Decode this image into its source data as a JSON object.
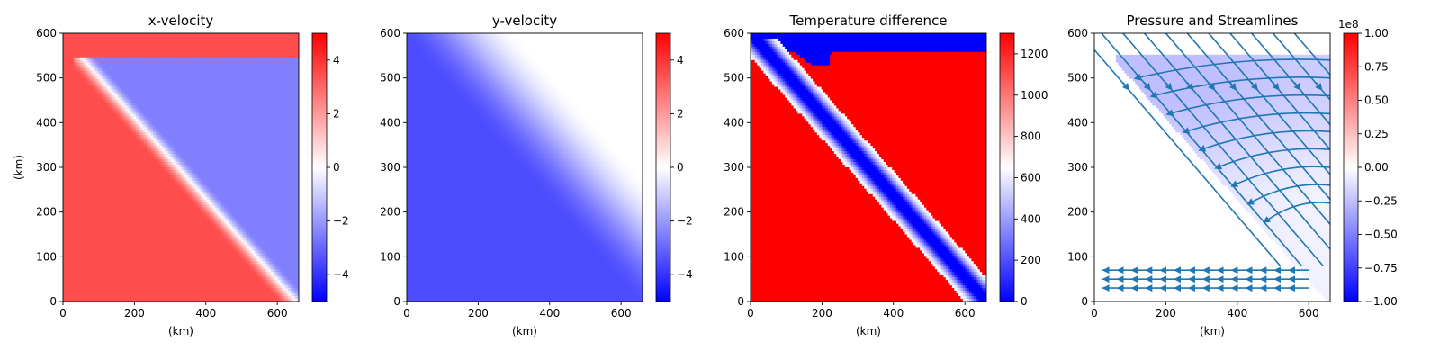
{
  "chart_data": [
    {
      "type": "heatmap",
      "title": "x-velocity",
      "xlabel": "(km)",
      "ylabel": "(km)",
      "xlim": [
        0,
        660
      ],
      "ylim": [
        0,
        600
      ],
      "xticks": [
        "0",
        "200",
        "400",
        "600"
      ],
      "yticks": [
        "0",
        "100",
        "200",
        "300",
        "400",
        "500",
        "600"
      ],
      "colorbar": {
        "range": [
          -5,
          5
        ],
        "ticks": [
          "4",
          "2",
          "0",
          "−2",
          "−4"
        ],
        "tick_values": [
          4,
          2,
          0,
          -2,
          -4
        ],
        "offset_label": ""
      },
      "colormap": [
        "#0000ff",
        "#ffffff",
        "#ff0000"
      ]
    },
    {
      "type": "heatmap",
      "title": "y-velocity",
      "xlabel": "(km)",
      "ylabel": "",
      "xlim": [
        0,
        660
      ],
      "ylim": [
        0,
        600
      ],
      "xticks": [
        "0",
        "200",
        "400",
        "600"
      ],
      "yticks": [
        "0",
        "100",
        "200",
        "300",
        "400",
        "500",
        "600"
      ],
      "colorbar": {
        "range": [
          -5,
          5
        ],
        "ticks": [
          "4",
          "2",
          "0",
          "−2",
          "−4"
        ],
        "tick_values": [
          4,
          2,
          0,
          -2,
          -4
        ],
        "offset_label": ""
      },
      "colormap": [
        "#0000ff",
        "#ffffff",
        "#ff0000"
      ]
    },
    {
      "type": "heatmap",
      "title": "Temperature difference",
      "xlabel": "(km)",
      "ylabel": "",
      "xlim": [
        0,
        660
      ],
      "ylim": [
        0,
        600
      ],
      "xticks": [
        "0",
        "200",
        "400",
        "600"
      ],
      "yticks": [
        "0",
        "100",
        "200",
        "300",
        "400",
        "500",
        "600"
      ],
      "colorbar": {
        "range": [
          0,
          1300
        ],
        "ticks": [
          "1200",
          "1000",
          "800",
          "600",
          "400",
          "200",
          "0"
        ],
        "tick_values": [
          1200,
          1000,
          800,
          600,
          400,
          200,
          0
        ],
        "offset_label": ""
      },
      "colormap": [
        "#0000ff",
        "#ffffff",
        "#ff0000"
      ]
    },
    {
      "type": "heatmap",
      "title": "Pressure and Streamlines",
      "xlabel": "(km)",
      "ylabel": "",
      "xlim": [
        0,
        660
      ],
      "ylim": [
        0,
        600
      ],
      "xticks": [
        "0",
        "200",
        "400",
        "600"
      ],
      "yticks": [
        "0",
        "100",
        "200",
        "300",
        "400",
        "500",
        "600"
      ],
      "colorbar": {
        "range": [
          -1,
          1
        ],
        "ticks": [
          "1.00",
          "0.75",
          "0.50",
          "0.25",
          "0.00",
          "−0.25",
          "−0.50",
          "−0.75",
          "−1.00"
        ],
        "tick_values": [
          1,
          0.75,
          0.5,
          0.25,
          0,
          -0.25,
          -0.5,
          -0.75,
          -1
        ],
        "offset_label": "1e8"
      },
      "colormap": [
        "#0000ff",
        "#ffffff",
        "#ff0000"
      ],
      "streamline_color": "#1f77b4"
    }
  ]
}
